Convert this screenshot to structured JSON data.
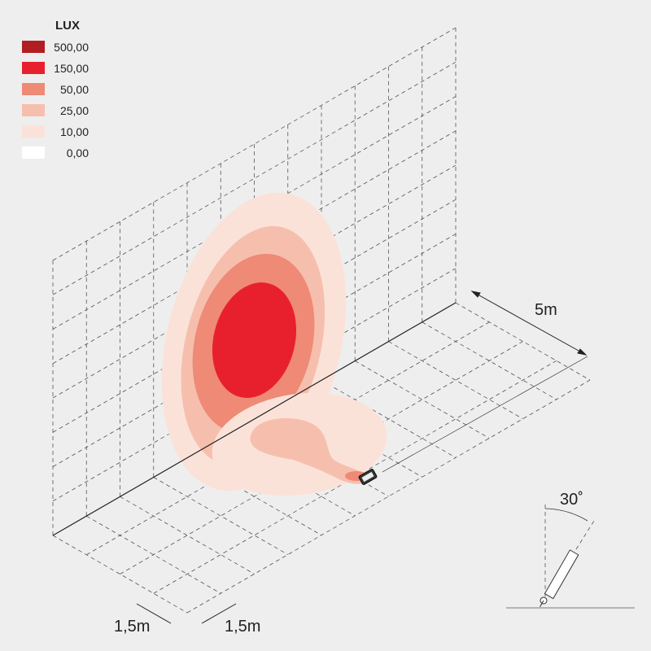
{
  "legend": {
    "title": "LUX",
    "items": [
      {
        "label": "500,00",
        "color": "#b01e23"
      },
      {
        "label": "150,00",
        "color": "#e8202e"
      },
      {
        "label": "50,00",
        "color": "#ee8a76"
      },
      {
        "label": "25,00",
        "color": "#f6bfad"
      },
      {
        "label": "10,00",
        "color": "#fbe2d9"
      },
      {
        "label": "0,00",
        "color": "#ffffff"
      }
    ]
  },
  "dimensions": {
    "depth": "5m",
    "grid_a": "1,5m",
    "grid_b": "1,5m",
    "tilt": "30˚"
  }
}
